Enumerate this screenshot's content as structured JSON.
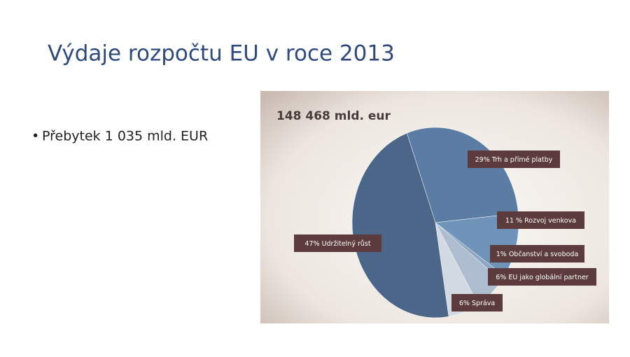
{
  "title": "Výdaje rozpočtu EU v roce 2013",
  "bullets": [
    "Přebytek 1 035 mld. EUR"
  ],
  "chart_data": {
    "type": "pie",
    "title": "148 468 mld. eur",
    "categories": [
      "Trh a přímé platby",
      "Rozvoj venkova",
      "Občanství a svoboda",
      "EU jako globální partner",
      "Správa",
      "Udržitelný růst"
    ],
    "values": [
      29,
      11,
      1,
      6,
      6,
      47
    ],
    "value_labels": [
      "29%",
      "11 %",
      "1%",
      "6%",
      "6%",
      "47%"
    ],
    "colors": [
      "#5b7ca3",
      "#7093ba",
      "#8fa6c2",
      "#aebdd0",
      "#d2d9e3",
      "#4b6688"
    ]
  }
}
